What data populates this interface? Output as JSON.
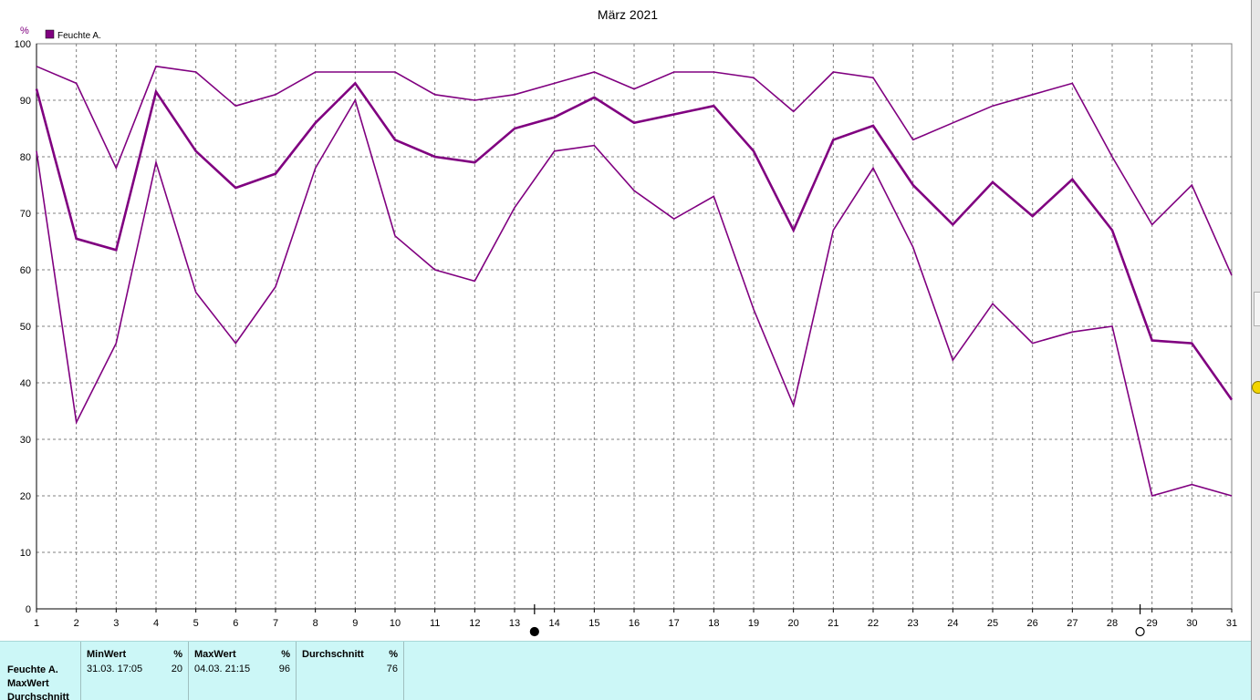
{
  "chart_data": {
    "type": "line",
    "title": "März 2021",
    "ylabel": "%",
    "ylim": [
      0,
      100
    ],
    "yticks": [
      0,
      10,
      20,
      30,
      40,
      50,
      60,
      70,
      80,
      90,
      100
    ],
    "x": [
      1,
      2,
      3,
      4,
      5,
      6,
      7,
      8,
      9,
      10,
      11,
      12,
      13,
      14,
      15,
      16,
      17,
      18,
      19,
      20,
      21,
      22,
      23,
      24,
      25,
      26,
      27,
      28,
      29,
      30,
      31
    ],
    "xticks": [
      "1",
      "2",
      "3",
      "4",
      "5",
      "6",
      "7",
      "8",
      "9",
      "10",
      "11",
      "12",
      "13",
      "14",
      "15",
      "16",
      "17",
      "18",
      "19",
      "20",
      "21",
      "22",
      "23",
      "24",
      "25",
      "26",
      "27",
      "28",
      "29",
      "30",
      "31"
    ],
    "grid": true,
    "legend": "top-left",
    "legend_entry": "Feuchte A.",
    "line_color": "#800080",
    "series": [
      {
        "role": "max",
        "values": [
          96,
          93,
          78,
          96,
          95,
          89,
          91,
          95,
          95,
          95,
          91,
          90,
          91,
          93,
          95,
          92,
          95,
          95,
          94,
          88,
          95,
          94,
          83,
          86,
          89,
          91,
          93,
          80,
          68,
          75,
          59
        ]
      },
      {
        "role": "avg",
        "values": [
          92,
          65.5,
          63.5,
          91.5,
          81,
          74.5,
          77,
          86,
          93,
          83,
          80,
          79,
          85,
          87,
          90.5,
          86,
          87.5,
          89,
          81,
          67,
          83,
          85.5,
          75,
          68,
          75.5,
          69.5,
          76,
          67,
          47.5,
          47,
          37
        ]
      },
      {
        "role": "min",
        "values": [
          81,
          33,
          47,
          79,
          56,
          47,
          57,
          78,
          90,
          66,
          60,
          58,
          71,
          81,
          82,
          74,
          69,
          73,
          53,
          36,
          67,
          78,
          64,
          44,
          54,
          47,
          49,
          50,
          20,
          22,
          20
        ]
      }
    ],
    "moon_markers": [
      {
        "x": 13.5,
        "phase": "new-moon"
      },
      {
        "x": 28.7,
        "phase": "full-moon"
      }
    ]
  },
  "stats": {
    "row_labels": [
      "Feuchte A.",
      "MaxWert",
      "Durchschnitt"
    ],
    "min": {
      "header": "MinWert",
      "unit": "%",
      "time": "31.03.  17:05",
      "value": "20"
    },
    "max": {
      "header": "MaxWert",
      "unit": "%",
      "time": "04.03.  21:15",
      "value": "96"
    },
    "avg": {
      "header": "Durchschnitt",
      "unit": "%",
      "value": "76"
    }
  }
}
